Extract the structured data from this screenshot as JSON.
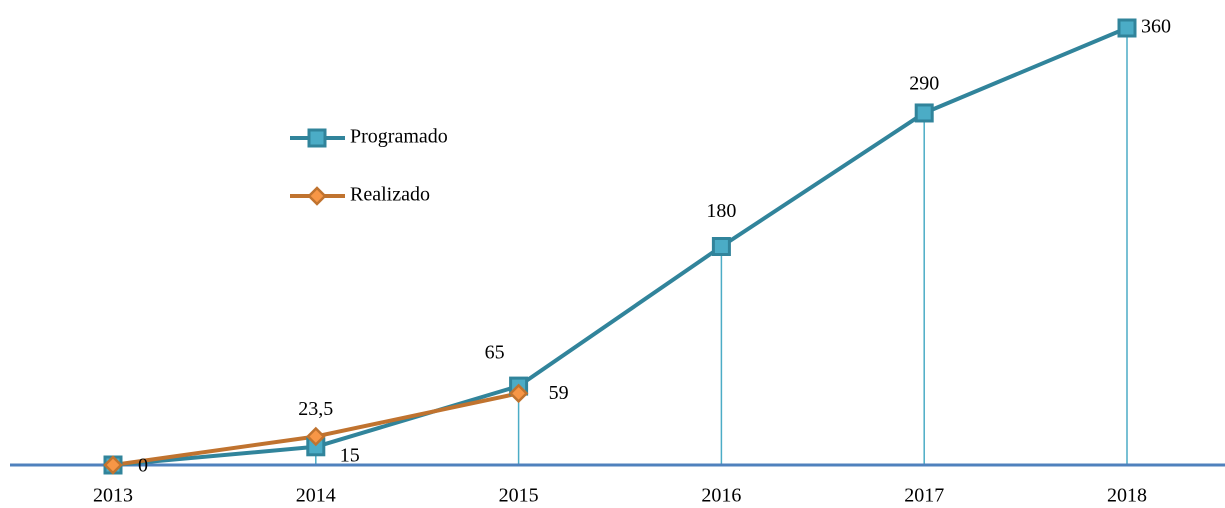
{
  "chart_data": {
    "type": "line",
    "categories": [
      "2013",
      "2014",
      "2015",
      "2016",
      "2017",
      "2018"
    ],
    "series": [
      {
        "name": "Programado",
        "color": "#31849b",
        "values": [
          0,
          15,
          65,
          180,
          290,
          360
        ]
      },
      {
        "name": "Realizado",
        "color": "#c0732f",
        "values": [
          0,
          23.5,
          59,
          null,
          null,
          null
        ],
        "value_labels": [
          null,
          "23,5",
          "59",
          null,
          null,
          null
        ]
      }
    ],
    "ylim": [
      0,
      360
    ]
  }
}
